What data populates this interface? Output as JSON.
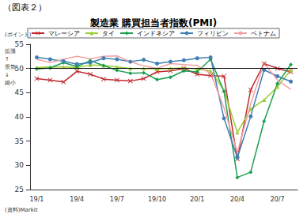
{
  "chart_data": {
    "type": "line",
    "label": "（図表２）",
    "title": "製造業 購買担当者指数(PMI)",
    "y_unit": "(ポイント)",
    "y_annotation": [
      "拡張",
      "↑",
      "景気",
      "↓",
      "縮小"
    ],
    "source": "(資料)Markit",
    "categories": [
      "19/1",
      null,
      null,
      "19/4",
      null,
      null,
      "19/7",
      null,
      null,
      "19/10",
      null,
      null,
      "20/1",
      null,
      null,
      "20/4",
      null,
      null,
      "20/7",
      null
    ],
    "series": [
      {
        "name": "マレーシア",
        "color": "#c0282e",
        "marker": "x",
        "values": [
          47.9,
          47.6,
          47.2,
          49.4,
          48.8,
          47.8,
          47.6,
          47.4,
          47.9,
          49.3,
          49.5,
          50.0,
          48.8,
          48.5,
          48.4,
          31.3,
          45.6,
          51.0,
          50.0,
          49.3
        ]
      },
      {
        "name": "タイ",
        "color": "#9acd32",
        "marker": "triangle",
        "values": [
          50.2,
          50.3,
          50.3,
          50.2,
          50.7,
          50.6,
          50.3,
          50.0,
          50.0,
          49.9,
          50.0,
          50.1,
          49.9,
          49.5,
          45.5,
          36.8,
          41.6,
          43.5,
          46.2,
          49.7
        ]
      },
      {
        "name": "インドネシア",
        "color": "#1a9e50",
        "marker": "diamond",
        "values": [
          49.9,
          50.1,
          51.2,
          50.4,
          51.6,
          50.6,
          49.6,
          49.0,
          49.1,
          47.7,
          48.2,
          49.5,
          49.3,
          51.9,
          45.3,
          27.5,
          28.6,
          39.1,
          46.9,
          50.8
        ]
      },
      {
        "name": "フィリピン",
        "color": "#3f7fb5",
        "marker": "circle",
        "values": [
          52.3,
          51.9,
          51.5,
          50.9,
          51.2,
          52.1,
          51.9,
          51.4,
          51.8,
          51.0,
          51.4,
          51.7,
          52.1,
          52.3,
          39.7,
          31.6,
          40.1,
          49.7,
          48.4,
          47.3
        ]
      },
      {
        "name": "ベトナム",
        "color": "#f4a0a0",
        "marker": "none",
        "values": [
          51.9,
          51.2,
          51.9,
          52.5,
          52.0,
          52.5,
          52.6,
          51.4,
          50.5,
          50.0,
          51.0,
          50.8,
          50.6,
          49.0,
          41.9,
          32.7,
          42.7,
          51.1,
          47.6,
          45.7
        ]
      }
    ],
    "hline": 50,
    "ylim": [
      25,
      55
    ],
    "yticks": [
      25,
      30,
      35,
      40,
      45,
      50,
      55
    ],
    "grid": false,
    "legend": "top"
  }
}
